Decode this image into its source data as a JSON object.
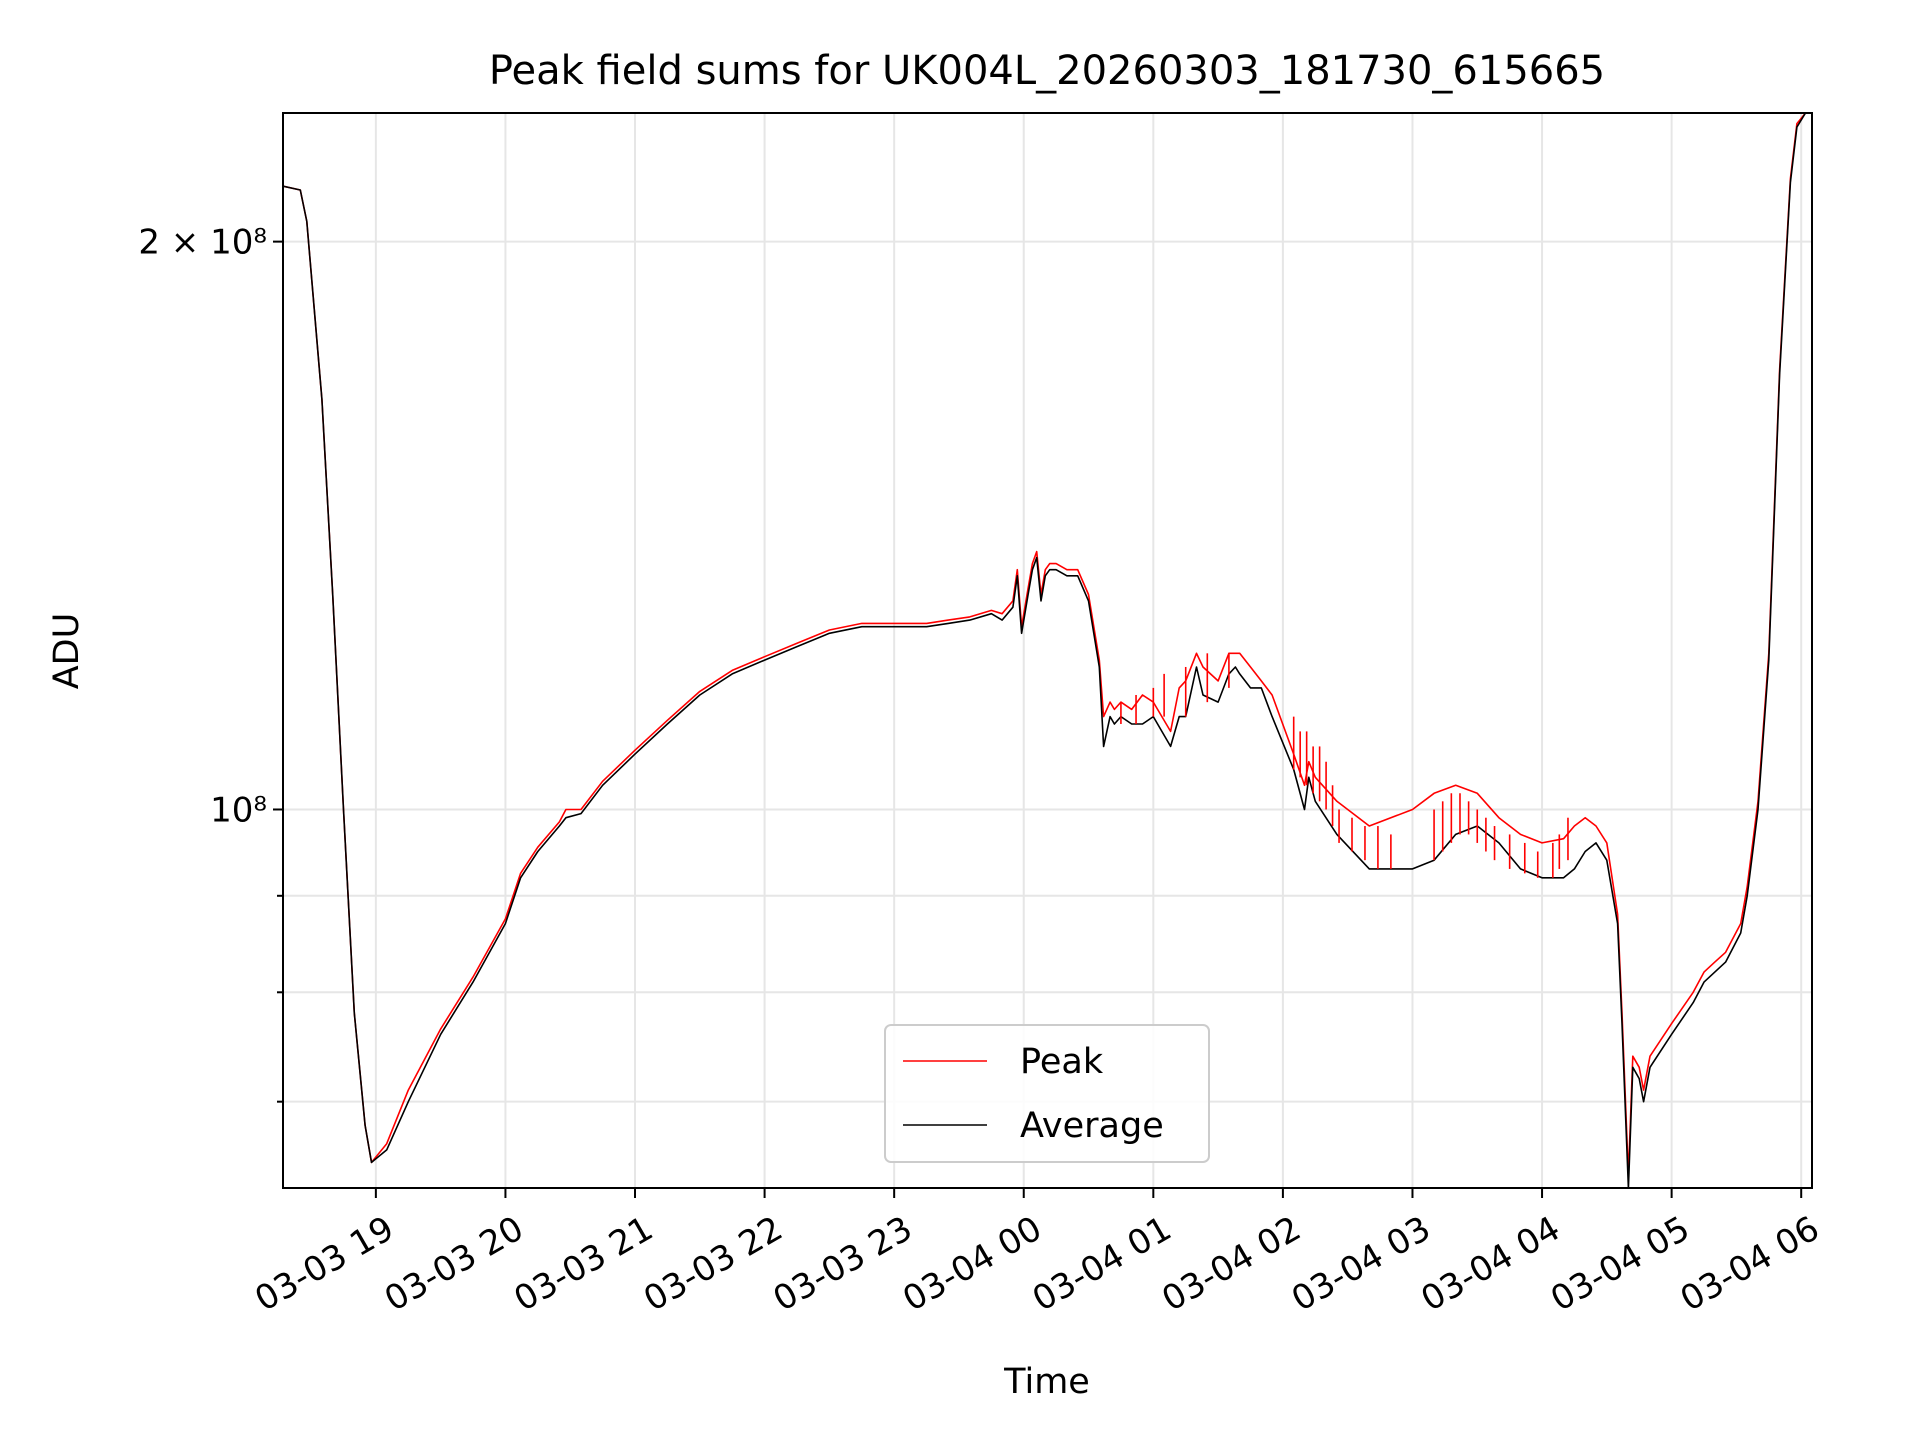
{
  "chart_data": {
    "type": "line",
    "title": "Peak field sums for UK004L_20260303_181730_615665",
    "xlabel": "Time",
    "ylabel": "ADU",
    "yscale": "log",
    "ylim": [
      63000000,
      234000000
    ],
    "xlim": [
      "2026-03-03 18:17",
      "2026-03-04 06:05"
    ],
    "grid": true,
    "legend_position": "lower center",
    "x_ticks": [
      "2026-03-03 19:00",
      "2026-03-03 20:00",
      "2026-03-03 21:00",
      "2026-03-03 22:00",
      "2026-03-03 23:00",
      "2026-03-04 00:00",
      "2026-03-04 01:00",
      "2026-03-04 02:00",
      "2026-03-04 03:00",
      "2026-03-04 04:00",
      "2026-03-04 05:00",
      "2026-03-04 06:00"
    ],
    "x_tick_labels": [
      "03-03 19",
      "03-03 20",
      "03-03 21",
      "03-03 22",
      "03-03 23",
      "03-04 00",
      "03-04 01",
      "03-04 02",
      "03-04 03",
      "03-04 04",
      "03-04 05",
      "03-04 06"
    ],
    "y_ticks": [
      100000000,
      200000000
    ],
    "y_tick_labels": [
      "10⁸",
      "2 × 10⁸"
    ],
    "y_minor_ticks": [
      70000000,
      80000000,
      90000000
    ],
    "series": [
      {
        "name": "Average",
        "color": "#000000",
        "x": [
          "2026-03-03 18:17",
          "2026-03-03 18:25",
          "2026-03-03 18:28",
          "2026-03-03 18:35",
          "2026-03-03 18:40",
          "2026-03-03 18:45",
          "2026-03-03 18:50",
          "2026-03-03 18:55",
          "2026-03-03 18:58",
          "2026-03-03 19:05",
          "2026-03-03 19:15",
          "2026-03-03 19:30",
          "2026-03-03 19:45",
          "2026-03-03 20:00",
          "2026-03-03 20:07",
          "2026-03-03 20:15",
          "2026-03-03 20:25",
          "2026-03-03 20:28",
          "2026-03-03 20:35",
          "2026-03-03 20:45",
          "2026-03-03 21:00",
          "2026-03-03 21:15",
          "2026-03-03 21:30",
          "2026-03-03 21:45",
          "2026-03-03 22:00",
          "2026-03-03 22:15",
          "2026-03-03 22:30",
          "2026-03-03 22:45",
          "2026-03-03 23:00",
          "2026-03-03 23:15",
          "2026-03-03 23:25",
          "2026-03-03 23:35",
          "2026-03-03 23:45",
          "2026-03-03 23:50",
          "2026-03-03 23:55",
          "2026-03-03 23:57",
          "2026-03-03 23:59",
          "2026-03-04 00:02",
          "2026-03-04 00:04",
          "2026-03-04 00:06",
          "2026-03-04 00:08",
          "2026-03-04 00:10",
          "2026-03-04 00:12",
          "2026-03-04 00:15",
          "2026-03-04 00:20",
          "2026-03-04 00:25",
          "2026-03-04 00:30",
          "2026-03-04 00:35",
          "2026-03-04 00:37",
          "2026-03-04 00:40",
          "2026-03-04 00:42",
          "2026-03-04 00:45",
          "2026-03-04 00:50",
          "2026-03-04 00:55",
          "2026-03-04 01:00",
          "2026-03-04 01:08",
          "2026-03-04 01:12",
          "2026-03-04 01:15",
          "2026-03-04 01:20",
          "2026-03-04 01:23",
          "2026-03-04 01:30",
          "2026-03-04 01:35",
          "2026-03-04 01:38",
          "2026-03-04 01:40",
          "2026-03-04 01:45",
          "2026-03-04 01:50",
          "2026-03-04 01:55",
          "2026-03-04 02:05",
          "2026-03-04 02:10",
          "2026-03-04 02:12",
          "2026-03-04 02:15",
          "2026-03-04 02:25",
          "2026-03-04 02:40",
          "2026-03-04 03:00",
          "2026-03-04 03:10",
          "2026-03-04 03:20",
          "2026-03-04 03:30",
          "2026-03-04 03:40",
          "2026-03-04 03:50",
          "2026-03-04 04:00",
          "2026-03-04 04:10",
          "2026-03-04 04:15",
          "2026-03-04 04:20",
          "2026-03-04 04:25",
          "2026-03-04 04:30",
          "2026-03-04 04:35",
          "2026-03-04 04:37",
          "2026-03-04 04:40",
          "2026-03-04 04:42",
          "2026-03-04 04:45",
          "2026-03-04 04:47",
          "2026-03-04 04:50",
          "2026-03-04 05:00",
          "2026-03-04 05:10",
          "2026-03-04 05:15",
          "2026-03-04 05:20",
          "2026-03-04 05:25",
          "2026-03-04 05:32",
          "2026-03-04 05:35",
          "2026-03-04 05:40",
          "2026-03-04 05:45",
          "2026-03-04 05:50",
          "2026-03-04 05:55",
          "2026-03-04 05:58",
          "2026-03-04 06:02",
          "2026-03-04 06:05"
        ],
        "y": [
          214000000,
          213000000,
          205000000,
          165000000,
          130000000,
          100000000,
          78000000,
          68000000,
          65000000,
          66000000,
          70000000,
          76000000,
          81000000,
          87000000,
          92000000,
          95000000,
          98000000,
          99000000,
          99500000,
          103000000,
          107000000,
          111000000,
          115000000,
          118000000,
          120000000,
          122000000,
          124000000,
          125000000,
          125000000,
          125000000,
          125500000,
          126000000,
          127000000,
          126000000,
          128000000,
          133000000,
          124000000,
          130000000,
          134000000,
          136000000,
          129000000,
          133000000,
          134000000,
          134000000,
          133000000,
          133000000,
          129000000,
          119000000,
          108000000,
          112000000,
          111000000,
          112000000,
          111000000,
          111000000,
          112000000,
          108000000,
          112000000,
          112000000,
          119000000,
          115000000,
          114000000,
          118000000,
          119000000,
          118000000,
          116000000,
          116000000,
          112000000,
          105000000,
          100000000,
          104000000,
          101000000,
          97000000,
          93000000,
          93000000,
          94000000,
          97000000,
          98000000,
          96000000,
          93000000,
          92000000,
          92000000,
          93000000,
          95000000,
          96000000,
          94000000,
          87000000,
          77000000,
          63000000,
          73000000,
          72000000,
          70000000,
          73000000,
          76000000,
          79000000,
          81000000,
          82000000,
          83000000,
          86000000,
          90000000,
          100000000,
          120000000,
          170000000,
          215000000,
          230000000,
          234000000,
          234000000
        ]
      },
      {
        "name": "Peak",
        "color": "#ff0000",
        "x": [
          "2026-03-03 18:17",
          "2026-03-03 18:25",
          "2026-03-03 18:28",
          "2026-03-03 18:35",
          "2026-03-03 18:40",
          "2026-03-03 18:45",
          "2026-03-03 18:50",
          "2026-03-03 18:55",
          "2026-03-03 18:58",
          "2026-03-03 19:05",
          "2026-03-03 19:15",
          "2026-03-03 19:30",
          "2026-03-03 19:45",
          "2026-03-03 20:00",
          "2026-03-03 20:07",
          "2026-03-03 20:15",
          "2026-03-03 20:25",
          "2026-03-03 20:28",
          "2026-03-03 20:35",
          "2026-03-03 20:45",
          "2026-03-03 21:00",
          "2026-03-03 21:15",
          "2026-03-03 21:30",
          "2026-03-03 21:45",
          "2026-03-03 22:00",
          "2026-03-03 22:15",
          "2026-03-03 22:30",
          "2026-03-03 22:45",
          "2026-03-03 23:00",
          "2026-03-03 23:15",
          "2026-03-03 23:25",
          "2026-03-03 23:35",
          "2026-03-03 23:45",
          "2026-03-03 23:50",
          "2026-03-03 23:55",
          "2026-03-03 23:57",
          "2026-03-03 23:59",
          "2026-03-04 00:02",
          "2026-03-04 00:04",
          "2026-03-04 00:06",
          "2026-03-04 00:08",
          "2026-03-04 00:10",
          "2026-03-04 00:12",
          "2026-03-04 00:15",
          "2026-03-04 00:20",
          "2026-03-04 00:25",
          "2026-03-04 00:30",
          "2026-03-04 00:35",
          "2026-03-04 00:37",
          "2026-03-04 00:40",
          "2026-03-04 00:42",
          "2026-03-04 00:45",
          "2026-03-04 00:50",
          "2026-03-04 00:55",
          "2026-03-04 01:00",
          "2026-03-04 01:08",
          "2026-03-04 01:12",
          "2026-03-04 01:15",
          "2026-03-04 01:20",
          "2026-03-04 01:23",
          "2026-03-04 01:30",
          "2026-03-04 01:35",
          "2026-03-04 01:38",
          "2026-03-04 01:40",
          "2026-03-04 01:45",
          "2026-03-04 01:50",
          "2026-03-04 01:55",
          "2026-03-04 02:05",
          "2026-03-04 02:10",
          "2026-03-04 02:12",
          "2026-03-04 02:15",
          "2026-03-04 02:25",
          "2026-03-04 02:40",
          "2026-03-04 03:00",
          "2026-03-04 03:10",
          "2026-03-04 03:20",
          "2026-03-04 03:30",
          "2026-03-04 03:40",
          "2026-03-04 03:50",
          "2026-03-04 04:00",
          "2026-03-04 04:10",
          "2026-03-04 04:15",
          "2026-03-04 04:20",
          "2026-03-04 04:25",
          "2026-03-04 04:30",
          "2026-03-04 04:35",
          "2026-03-04 04:37",
          "2026-03-04 04:40",
          "2026-03-04 04:42",
          "2026-03-04 04:45",
          "2026-03-04 04:47",
          "2026-03-04 04:50",
          "2026-03-04 05:00",
          "2026-03-04 05:10",
          "2026-03-04 05:15",
          "2026-03-04 05:20",
          "2026-03-04 05:25",
          "2026-03-04 05:32",
          "2026-03-04 05:35",
          "2026-03-04 05:40",
          "2026-03-04 05:45",
          "2026-03-04 05:50",
          "2026-03-04 05:55",
          "2026-03-04 05:58",
          "2026-03-04 06:02",
          "2026-03-04 06:05"
        ],
        "y": [
          214000000,
          213000000,
          205000000,
          165000000,
          130000000,
          100000000,
          78000000,
          68000000,
          65000000,
          66500000,
          71000000,
          76500000,
          81500000,
          87500000,
          92500000,
          95500000,
          98500000,
          100000000,
          100000000,
          103500000,
          107500000,
          111500000,
          115500000,
          118500000,
          120500000,
          122500000,
          124500000,
          125500000,
          125500000,
          125500000,
          126000000,
          126500000,
          127500000,
          127000000,
          129000000,
          134000000,
          125000000,
          131000000,
          135000000,
          137000000,
          130000000,
          134000000,
          135000000,
          135000000,
          134000000,
          134000000,
          130000000,
          120000000,
          112000000,
          114000000,
          113000000,
          114000000,
          113000000,
          115000000,
          114000000,
          110000000,
          116000000,
          117000000,
          121000000,
          119000000,
          117000000,
          121000000,
          121000000,
          121000000,
          119000000,
          117000000,
          115000000,
          107000000,
          103000000,
          106000000,
          104000000,
          101000000,
          98000000,
          100000000,
          102000000,
          103000000,
          102000000,
          99000000,
          97000000,
          96000000,
          96500000,
          98000000,
          99000000,
          98000000,
          96000000,
          88000000,
          78000000,
          64000000,
          74000000,
          73000000,
          71000000,
          74000000,
          77000000,
          80000000,
          82000000,
          83000000,
          84000000,
          87000000,
          91000000,
          101000000,
          121000000,
          171000000,
          216000000,
          231000000,
          234000000,
          234000000
        ]
      }
    ],
    "peak_spikes": {
      "color": "#ff0000",
      "x": [
        "2026-03-04 00:45",
        "2026-03-04 00:52",
        "2026-03-04 01:00",
        "2026-03-04 01:05",
        "2026-03-04 01:15",
        "2026-03-04 01:25",
        "2026-03-04 01:35",
        "2026-03-04 02:05",
        "2026-03-04 02:08",
        "2026-03-04 02:11",
        "2026-03-04 02:14",
        "2026-03-04 02:17",
        "2026-03-04 02:20",
        "2026-03-04 02:23",
        "2026-03-04 02:26",
        "2026-03-04 02:32",
        "2026-03-04 02:38",
        "2026-03-04 02:44",
        "2026-03-04 02:50",
        "2026-03-04 03:10",
        "2026-03-04 03:14",
        "2026-03-04 03:18",
        "2026-03-04 03:22",
        "2026-03-04 03:26",
        "2026-03-04 03:30",
        "2026-03-04 03:34",
        "2026-03-04 03:38",
        "2026-03-04 03:45",
        "2026-03-04 03:52",
        "2026-03-04 03:58",
        "2026-03-04 04:05",
        "2026-03-04 04:08",
        "2026-03-04 04:12"
      ],
      "peak": [
        114000000,
        115000000,
        116000000,
        118000000,
        119000000,
        121000000,
        121000000,
        112000000,
        110000000,
        110000000,
        108000000,
        108000000,
        106000000,
        103000000,
        100000000,
        99000000,
        98000000,
        98000000,
        97000000,
        100000000,
        101000000,
        102000000,
        102000000,
        101000000,
        100000000,
        99000000,
        98000000,
        97000000,
        96000000,
        95000000,
        96000000,
        97000000,
        99000000
      ],
      "average": [
        111000000,
        111000000,
        112000000,
        112000000,
        112000000,
        114000000,
        116000000,
        105000000,
        104000000,
        103000000,
        102000000,
        101000000,
        100000000,
        98000000,
        96000000,
        95000000,
        94000000,
        93000000,
        93000000,
        94000000,
        95000000,
        96000000,
        97000000,
        97000000,
        96000000,
        95000000,
        94000000,
        93000000,
        92500000,
        92000000,
        92000000,
        93000000,
        94000000
      ]
    }
  }
}
